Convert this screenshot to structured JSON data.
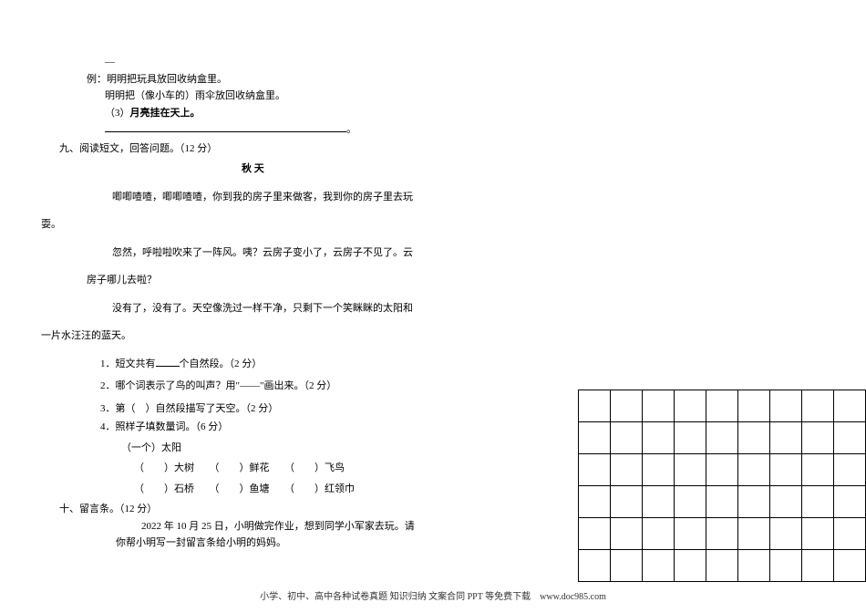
{
  "dash": "—",
  "example": {
    "label": "例：",
    "l1": "明明把玩具放回收纳盒里。",
    "l2": "明明把（像小车的）雨伞放回收纳盒里。",
    "q3_label": "（3）",
    "q3_text": "月亮挂在天上。",
    "end_punc": "。"
  },
  "section9": {
    "heading": "九、阅读短文，回答问题。（12 分）",
    "title": "秋 天",
    "p1": "唧唧喳喳，唧唧喳喳，你到我的房子里来做客，我到你的房子里去玩",
    "p1b": "耍。",
    "p2": "忽然，呼啦啦吹来了一阵风。咦？云房子变小了，云房子不见了。云",
    "p2b": "房子哪儿去啦？",
    "p3": "没有了，没有了。天空像洗过一样干净，只剩下一个笑眯眯的太阳和",
    "p3b": "一片水汪汪的蓝天。",
    "q1a": "1．短文共有",
    "q1b": "个自然段。（2 分）",
    "q2": "2．哪个词表示了鸟的叫声？用\"——\"画出来。（2 分）",
    "q3": "3．第（　）自然段描写了天空。（2 分）",
    "q4": "4．照样子填数量词。（6 分）",
    "q4_ex": "（一个）太阳",
    "q4_row1": "（　　）大树　　（　　）鲜花　　（　　）飞鸟",
    "q4_row2": "（　　）石桥　　（　　）鱼塘　　（　　）红领巾"
  },
  "section10": {
    "heading": "十、留言条。（12 分）",
    "l1": "2022 年 10 月 25 日，小明做完作业，想到同学小军家去玩。请",
    "l2": "你帮小明写一封留言条给小明的妈妈。"
  },
  "footer": "小学、初中、高中各种试卷真题 知识归纳 文案合同 PPT 等免费下载　www.doc985.com",
  "grid": {
    "rows": 6,
    "cols": 9
  }
}
